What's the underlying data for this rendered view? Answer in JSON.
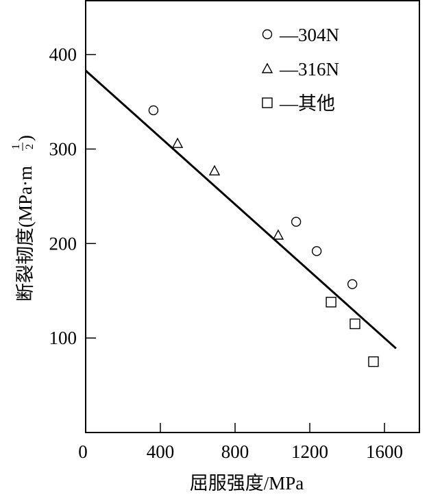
{
  "chart_data": {
    "type": "scatter",
    "xlabel": "屈服强度/MPa",
    "ylabel_main": "断裂韧度(MPa·m",
    "ylabel_exp_num": "1",
    "ylabel_exp_den": "2",
    "ylabel_close": ")",
    "xlim": [
      0,
      1787
    ],
    "ylim": [
      0,
      457
    ],
    "xticks": [
      "0",
      "400",
      "800",
      "1200",
      "1600"
    ],
    "xtick_values": [
      0,
      400,
      800,
      1200,
      1600
    ],
    "yticks": [
      "100",
      "200",
      "300",
      "400"
    ],
    "ytick_values": [
      100,
      200,
      300,
      400
    ],
    "grid": false,
    "legend_placement": "top-right",
    "series": [
      {
        "name": "—304N",
        "marker": "circle",
        "points": [
          [
            363,
            341
          ],
          [
            1127,
            223
          ],
          [
            1237,
            192
          ],
          [
            1428,
            157
          ]
        ]
      },
      {
        "name": "—316N",
        "marker": "triangle",
        "points": [
          [
            492,
            306
          ],
          [
            690,
            277
          ],
          [
            1031,
            209
          ]
        ]
      },
      {
        "name": "—其他",
        "marker": "square",
        "points": [
          [
            1314,
            138
          ],
          [
            1442,
            115
          ],
          [
            1541,
            75
          ]
        ]
      }
    ],
    "fit_line": {
      "x": [
        0,
        1662
      ],
      "y": [
        383,
        89
      ]
    }
  }
}
